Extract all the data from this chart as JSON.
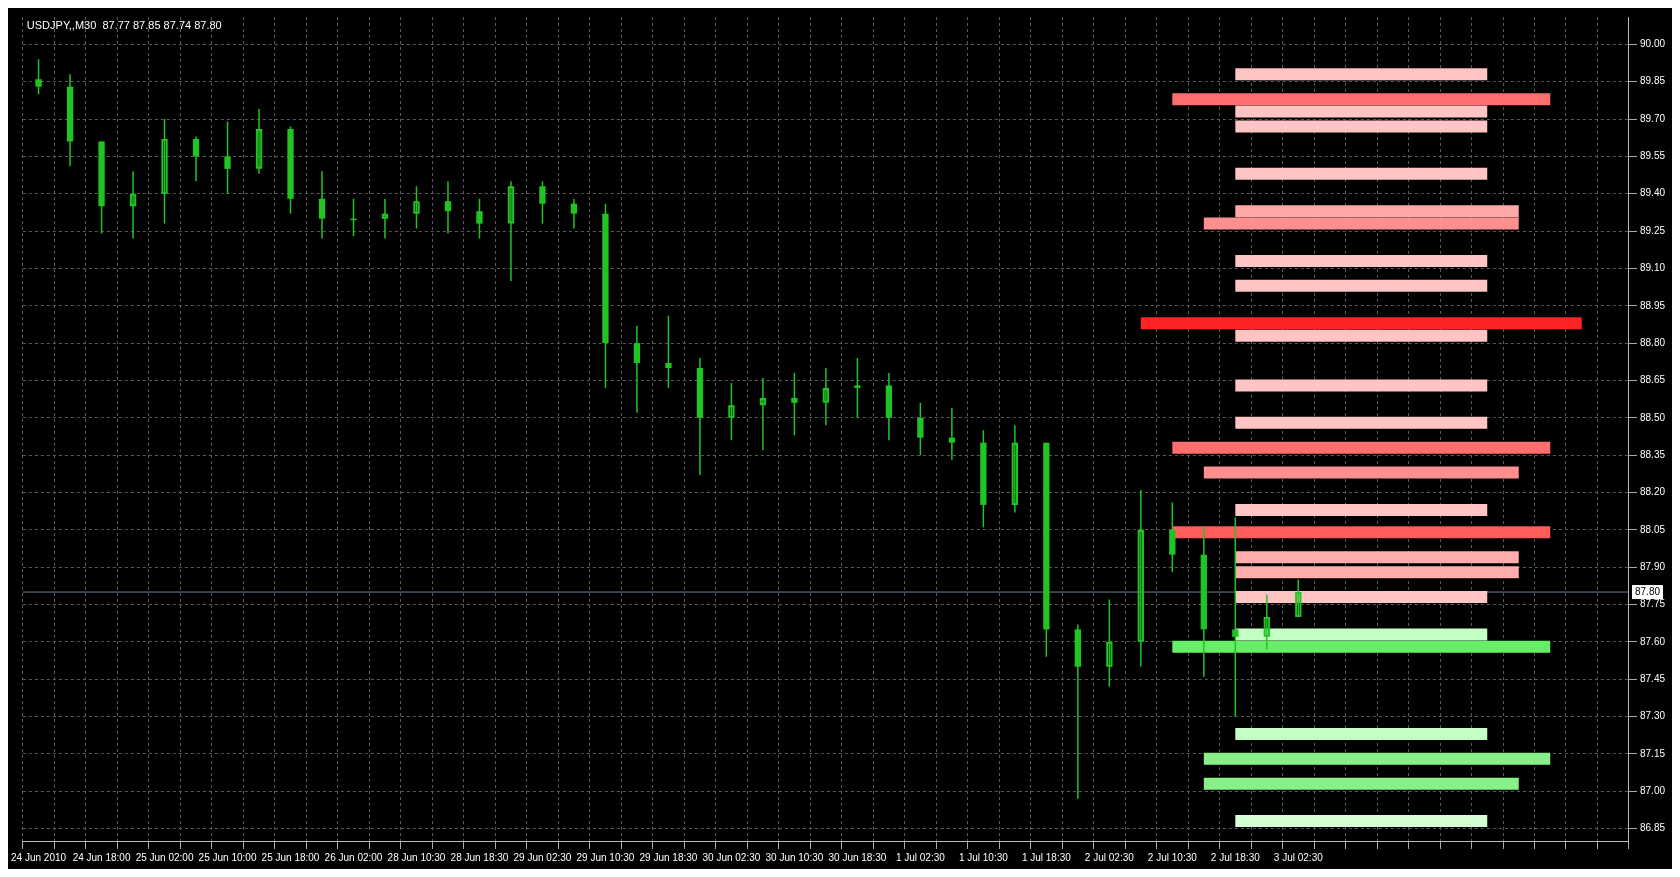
{
  "chart_data": {
    "type": "candlestick",
    "title": "USDJPY,,M30  87.77 87.85 87.74 87.80",
    "color": "#22c422",
    "grid": true,
    "legend": false,
    "categories": [
      "24 Jun 2010",
      null,
      "24 Jun 18:00",
      null,
      "25 Jun 02:00",
      null,
      "25 Jun 10:00",
      null,
      "25 Jun 18:00",
      null,
      "26 Jun 02:00",
      null,
      "28 Jun 10:30",
      null,
      "28 Jun 18:30",
      null,
      "29 Jun 02:30",
      null,
      "29 Jun 10:30",
      null,
      "29 Jun 18:30",
      null,
      "30 Jun 02:30",
      null,
      "30 Jun 10:30",
      null,
      "30 Jun 18:30",
      null,
      "1 Jul 02:30",
      null,
      "1 Jul 10:30",
      null,
      "1 Jul 18:30",
      null,
      "2 Jul 02:30",
      null,
      "2 Jul 10:30",
      null,
      "2 Jul 18:30",
      null,
      "3 Jul 02:30",
      null,
      null,
      null,
      null,
      null,
      null,
      null,
      null,
      null,
      null
    ],
    "ohlc": [
      [
        89.86,
        89.94,
        89.8,
        89.83
      ],
      [
        89.83,
        89.88,
        89.51,
        89.61
      ],
      [
        89.61,
        89.61,
        89.24,
        89.35
      ],
      [
        89.35,
        89.49,
        89.22,
        89.4
      ],
      [
        89.4,
        89.7,
        89.28,
        89.62
      ],
      [
        89.62,
        89.63,
        89.45,
        89.55
      ],
      [
        89.55,
        89.69,
        89.4,
        89.5
      ],
      [
        89.5,
        89.74,
        89.48,
        89.66
      ],
      [
        89.66,
        89.67,
        89.32,
        89.38
      ],
      [
        89.38,
        89.49,
        89.22,
        89.3
      ],
      [
        89.3,
        89.38,
        89.23,
        89.3
      ],
      [
        89.3,
        89.38,
        89.22,
        89.32
      ],
      [
        89.32,
        89.43,
        89.26,
        89.37
      ],
      [
        89.37,
        89.45,
        89.24,
        89.33
      ],
      [
        89.33,
        89.38,
        89.22,
        89.28
      ],
      [
        89.28,
        89.45,
        89.05,
        89.43
      ],
      [
        89.43,
        89.45,
        89.28,
        89.36
      ],
      [
        89.36,
        89.38,
        89.26,
        89.32
      ],
      [
        89.32,
        89.36,
        88.62,
        88.8
      ],
      [
        88.8,
        88.87,
        88.52,
        88.72
      ],
      [
        88.72,
        88.91,
        88.62,
        88.7
      ],
      [
        88.7,
        88.74,
        88.27,
        88.5
      ],
      [
        88.5,
        88.64,
        88.41,
        88.55
      ],
      [
        88.55,
        88.66,
        88.37,
        88.58
      ],
      [
        88.58,
        88.68,
        88.43,
        88.56
      ],
      [
        88.56,
        88.7,
        88.47,
        88.62
      ],
      [
        88.62,
        88.74,
        88.5,
        88.63
      ],
      [
        88.63,
        88.68,
        88.41,
        88.5
      ],
      [
        88.5,
        88.56,
        88.35,
        88.42
      ],
      [
        88.42,
        88.54,
        88.33,
        88.4
      ],
      [
        88.4,
        88.45,
        88.06,
        88.15
      ],
      [
        88.15,
        88.47,
        88.12,
        88.4
      ],
      [
        88.4,
        88.4,
        87.54,
        87.65
      ],
      [
        87.65,
        87.67,
        86.97,
        87.5
      ],
      [
        87.5,
        87.77,
        87.42,
        87.6
      ],
      [
        87.6,
        88.21,
        87.5,
        88.05
      ],
      [
        88.05,
        88.16,
        87.88,
        87.95
      ],
      [
        87.95,
        88.06,
        87.46,
        87.65
      ],
      [
        87.65,
        88.1,
        87.3,
        87.62
      ],
      [
        87.62,
        87.79,
        87.57,
        87.7
      ],
      [
        87.7,
        87.85,
        87.7,
        87.8
      ],
      null,
      null,
      null,
      null,
      null,
      null,
      null,
      null,
      null,
      null
    ],
    "series": [
      {
        "type": "line",
        "color": "#ffc4c4",
        "values": [
          null,
          null,
          null,
          null,
          null,
          null,
          null,
          null,
          null,
          null,
          null,
          null,
          null,
          null,
          null,
          null,
          null,
          null,
          null,
          null,
          null,
          null,
          null,
          null,
          null,
          null,
          null,
          null,
          null,
          null,
          null,
          null,
          null,
          null,
          null,
          null,
          null,
          null,
          89.88,
          89.88,
          89.88,
          89.88,
          89.88,
          89.88,
          89.88,
          89.88,
          89.88,
          null,
          null,
          null,
          null
        ]
      },
      {
        "type": "line",
        "color": "#ff6e6e",
        "values": [
          null,
          null,
          null,
          null,
          null,
          null,
          null,
          null,
          null,
          null,
          null,
          null,
          null,
          null,
          null,
          null,
          null,
          null,
          null,
          null,
          null,
          null,
          null,
          null,
          null,
          null,
          null,
          null,
          null,
          null,
          null,
          null,
          null,
          null,
          null,
          null,
          89.78,
          89.78,
          89.78,
          89.78,
          89.78,
          89.78,
          89.78,
          89.78,
          89.78,
          89.78,
          89.78,
          89.78,
          89.78,
          null,
          null
        ]
      },
      {
        "type": "line",
        "color": "#ffc4c4",
        "values": [
          null,
          null,
          null,
          null,
          null,
          null,
          null,
          null,
          null,
          null,
          null,
          null,
          null,
          null,
          null,
          null,
          null,
          null,
          null,
          null,
          null,
          null,
          null,
          null,
          null,
          null,
          null,
          null,
          null,
          null,
          null,
          null,
          null,
          null,
          null,
          null,
          null,
          null,
          89.73,
          89.73,
          89.73,
          89.73,
          89.73,
          89.73,
          89.73,
          89.73,
          89.73,
          null,
          null,
          null,
          null
        ]
      },
      {
        "type": "line",
        "color": "#ffc4c4",
        "values": [
          null,
          null,
          null,
          null,
          null,
          null,
          null,
          null,
          null,
          null,
          null,
          null,
          null,
          null,
          null,
          null,
          null,
          null,
          null,
          null,
          null,
          null,
          null,
          null,
          null,
          null,
          null,
          null,
          null,
          null,
          null,
          null,
          null,
          null,
          null,
          null,
          null,
          null,
          89.67,
          89.67,
          89.67,
          89.67,
          89.67,
          89.67,
          89.67,
          89.67,
          89.67,
          null,
          null,
          null,
          null
        ]
      },
      {
        "type": "line",
        "color": "#ffc4c4",
        "values": [
          null,
          null,
          null,
          null,
          null,
          null,
          null,
          null,
          null,
          null,
          null,
          null,
          null,
          null,
          null,
          null,
          null,
          null,
          null,
          null,
          null,
          null,
          null,
          null,
          null,
          null,
          null,
          null,
          null,
          null,
          null,
          null,
          null,
          null,
          null,
          null,
          null,
          null,
          89.48,
          89.48,
          89.48,
          89.48,
          89.48,
          89.48,
          89.48,
          89.48,
          89.48,
          null,
          null,
          null,
          null
        ]
      },
      {
        "type": "line",
        "color": "#ffa8a8",
        "values": [
          null,
          null,
          null,
          null,
          null,
          null,
          null,
          null,
          null,
          null,
          null,
          null,
          null,
          null,
          null,
          null,
          null,
          null,
          null,
          null,
          null,
          null,
          null,
          null,
          null,
          null,
          null,
          null,
          null,
          null,
          null,
          null,
          null,
          null,
          null,
          null,
          null,
          null,
          89.33,
          89.33,
          89.33,
          89.33,
          89.33,
          89.33,
          89.33,
          89.33,
          89.33,
          89.33,
          null,
          null,
          null
        ]
      },
      {
        "type": "line",
        "color": "#ff8e8e",
        "values": [
          null,
          null,
          null,
          null,
          null,
          null,
          null,
          null,
          null,
          null,
          null,
          null,
          null,
          null,
          null,
          null,
          null,
          null,
          null,
          null,
          null,
          null,
          null,
          null,
          null,
          null,
          null,
          null,
          null,
          null,
          null,
          null,
          null,
          null,
          null,
          null,
          null,
          89.28,
          89.28,
          89.28,
          89.28,
          89.28,
          89.28,
          89.28,
          89.28,
          89.28,
          89.28,
          89.28,
          null,
          null,
          null
        ]
      },
      {
        "type": "line",
        "color": "#ffc4c4",
        "values": [
          null,
          null,
          null,
          null,
          null,
          null,
          null,
          null,
          null,
          null,
          null,
          null,
          null,
          null,
          null,
          null,
          null,
          null,
          null,
          null,
          null,
          null,
          null,
          null,
          null,
          null,
          null,
          null,
          null,
          null,
          null,
          null,
          null,
          null,
          null,
          null,
          null,
          null,
          89.13,
          89.13,
          89.13,
          89.13,
          89.13,
          89.13,
          89.13,
          89.13,
          89.13,
          null,
          null,
          null,
          null
        ]
      },
      {
        "type": "line",
        "color": "#ffc4c4",
        "values": [
          null,
          null,
          null,
          null,
          null,
          null,
          null,
          null,
          null,
          null,
          null,
          null,
          null,
          null,
          null,
          null,
          null,
          null,
          null,
          null,
          null,
          null,
          null,
          null,
          null,
          null,
          null,
          null,
          null,
          null,
          null,
          null,
          null,
          null,
          null,
          null,
          null,
          null,
          89.03,
          89.03,
          89.03,
          89.03,
          89.03,
          89.03,
          89.03,
          89.03,
          89.03,
          null,
          null,
          null,
          null
        ]
      },
      {
        "type": "line",
        "color": "#ffc4c4",
        "values": [
          null,
          null,
          null,
          null,
          null,
          null,
          null,
          null,
          null,
          null,
          null,
          null,
          null,
          null,
          null,
          null,
          null,
          null,
          null,
          null,
          null,
          null,
          null,
          null,
          null,
          null,
          null,
          null,
          null,
          null,
          null,
          null,
          null,
          null,
          null,
          null,
          null,
          null,
          88.83,
          88.83,
          88.83,
          88.83,
          88.83,
          88.83,
          88.83,
          88.83,
          88.83,
          null,
          null,
          null,
          null
        ]
      },
      {
        "type": "line",
        "color": "#ff2424",
        "values": [
          null,
          null,
          null,
          null,
          null,
          null,
          null,
          null,
          null,
          null,
          null,
          null,
          null,
          null,
          null,
          null,
          null,
          null,
          null,
          null,
          null,
          null,
          null,
          null,
          null,
          null,
          null,
          null,
          null,
          null,
          null,
          null,
          null,
          null,
          null,
          88.88,
          88.88,
          88.88,
          88.88,
          88.88,
          88.88,
          88.88,
          88.88,
          88.88,
          88.88,
          88.88,
          88.88,
          88.88,
          88.88,
          88.88,
          null
        ]
      },
      {
        "type": "line",
        "color": "#ffc4c4",
        "values": [
          null,
          null,
          null,
          null,
          null,
          null,
          null,
          null,
          null,
          null,
          null,
          null,
          null,
          null,
          null,
          null,
          null,
          null,
          null,
          null,
          null,
          null,
          null,
          null,
          null,
          null,
          null,
          null,
          null,
          null,
          null,
          null,
          null,
          null,
          null,
          null,
          null,
          null,
          88.63,
          88.63,
          88.63,
          88.63,
          88.63,
          88.63,
          88.63,
          88.63,
          88.63,
          null,
          null,
          null,
          null
        ]
      },
      {
        "type": "line",
        "color": "#ffc4c4",
        "values": [
          null,
          null,
          null,
          null,
          null,
          null,
          null,
          null,
          null,
          null,
          null,
          null,
          null,
          null,
          null,
          null,
          null,
          null,
          null,
          null,
          null,
          null,
          null,
          null,
          null,
          null,
          null,
          null,
          null,
          null,
          null,
          null,
          null,
          null,
          null,
          null,
          null,
          null,
          88.48,
          88.48,
          88.48,
          88.48,
          88.48,
          88.48,
          88.48,
          88.48,
          88.48,
          null,
          null,
          null,
          null
        ]
      },
      {
        "type": "line",
        "color": "#ff6e6e",
        "values": [
          null,
          null,
          null,
          null,
          null,
          null,
          null,
          null,
          null,
          null,
          null,
          null,
          null,
          null,
          null,
          null,
          null,
          null,
          null,
          null,
          null,
          null,
          null,
          null,
          null,
          null,
          null,
          null,
          null,
          null,
          null,
          null,
          null,
          null,
          null,
          null,
          88.38,
          88.38,
          88.38,
          88.38,
          88.38,
          88.38,
          88.38,
          88.38,
          88.38,
          88.38,
          88.38,
          88.38,
          88.38,
          null,
          null
        ]
      },
      {
        "type": "line",
        "color": "#ff8e8e",
        "values": [
          null,
          null,
          null,
          null,
          null,
          null,
          null,
          null,
          null,
          null,
          null,
          null,
          null,
          null,
          null,
          null,
          null,
          null,
          null,
          null,
          null,
          null,
          null,
          null,
          null,
          null,
          null,
          null,
          null,
          null,
          null,
          null,
          null,
          null,
          null,
          null,
          null,
          88.28,
          88.28,
          88.28,
          88.28,
          88.28,
          88.28,
          88.28,
          88.28,
          88.28,
          88.28,
          88.28,
          null,
          null,
          null
        ]
      },
      {
        "type": "line",
        "color": "#ffc4c4",
        "values": [
          null,
          null,
          null,
          null,
          null,
          null,
          null,
          null,
          null,
          null,
          null,
          null,
          null,
          null,
          null,
          null,
          null,
          null,
          null,
          null,
          null,
          null,
          null,
          null,
          null,
          null,
          null,
          null,
          null,
          null,
          null,
          null,
          null,
          null,
          null,
          null,
          null,
          null,
          88.13,
          88.13,
          88.13,
          88.13,
          88.13,
          88.13,
          88.13,
          88.13,
          88.13,
          null,
          null,
          null,
          null
        ]
      },
      {
        "type": "line",
        "color": "#ff5c5c",
        "values": [
          null,
          null,
          null,
          null,
          null,
          null,
          null,
          null,
          null,
          null,
          null,
          null,
          null,
          null,
          null,
          null,
          null,
          null,
          null,
          null,
          null,
          null,
          null,
          null,
          null,
          null,
          null,
          null,
          null,
          null,
          null,
          null,
          null,
          null,
          null,
          null,
          88.04,
          88.04,
          88.04,
          88.04,
          88.04,
          88.04,
          88.04,
          88.04,
          88.04,
          88.04,
          88.04,
          88.04,
          88.04,
          null,
          null
        ]
      },
      {
        "type": "line",
        "color": "#ffacac",
        "values": [
          null,
          null,
          null,
          null,
          null,
          null,
          null,
          null,
          null,
          null,
          null,
          null,
          null,
          null,
          null,
          null,
          null,
          null,
          null,
          null,
          null,
          null,
          null,
          null,
          null,
          null,
          null,
          null,
          null,
          null,
          null,
          null,
          null,
          null,
          null,
          null,
          null,
          null,
          87.94,
          87.94,
          87.94,
          87.94,
          87.94,
          87.94,
          87.94,
          87.94,
          87.94,
          87.94,
          null,
          null,
          null
        ]
      },
      {
        "type": "line",
        "color": "#ffacac",
        "values": [
          null,
          null,
          null,
          null,
          null,
          null,
          null,
          null,
          null,
          null,
          null,
          null,
          null,
          null,
          null,
          null,
          null,
          null,
          null,
          null,
          null,
          null,
          null,
          null,
          null,
          null,
          null,
          null,
          null,
          null,
          null,
          null,
          null,
          null,
          null,
          null,
          null,
          null,
          87.88,
          87.88,
          87.88,
          87.88,
          87.88,
          87.88,
          87.88,
          87.88,
          87.88,
          87.88,
          null,
          null,
          null
        ]
      },
      {
        "type": "line",
        "color": "#ffc4c4",
        "values": [
          null,
          null,
          null,
          null,
          null,
          null,
          null,
          null,
          null,
          null,
          null,
          null,
          null,
          null,
          null,
          null,
          null,
          null,
          null,
          null,
          null,
          null,
          null,
          null,
          null,
          null,
          null,
          null,
          null,
          null,
          null,
          null,
          null,
          null,
          null,
          null,
          null,
          null,
          87.78,
          87.78,
          87.78,
          87.78,
          87.78,
          87.78,
          87.78,
          87.78,
          87.78,
          null,
          null,
          null,
          null
        ]
      },
      {
        "type": "line",
        "color": "#c4ffc4",
        "values": [
          null,
          null,
          null,
          null,
          null,
          null,
          null,
          null,
          null,
          null,
          null,
          null,
          null,
          null,
          null,
          null,
          null,
          null,
          null,
          null,
          null,
          null,
          null,
          null,
          null,
          null,
          null,
          null,
          null,
          null,
          null,
          null,
          null,
          null,
          null,
          null,
          null,
          null,
          87.63,
          87.63,
          87.63,
          87.63,
          87.63,
          87.63,
          87.63,
          87.63,
          87.63,
          null,
          null,
          null,
          null
        ]
      },
      {
        "type": "line",
        "color": "#66ee66",
        "values": [
          null,
          null,
          null,
          null,
          null,
          null,
          null,
          null,
          null,
          null,
          null,
          null,
          null,
          null,
          null,
          null,
          null,
          null,
          null,
          null,
          null,
          null,
          null,
          null,
          null,
          null,
          null,
          null,
          null,
          null,
          null,
          null,
          null,
          null,
          null,
          null,
          87.58,
          87.58,
          87.58,
          87.58,
          87.58,
          87.58,
          87.58,
          87.58,
          87.58,
          87.58,
          87.58,
          87.58,
          87.58,
          null,
          null
        ]
      },
      {
        "type": "line",
        "color": "#c4ffc4",
        "values": [
          null,
          null,
          null,
          null,
          null,
          null,
          null,
          null,
          null,
          null,
          null,
          null,
          null,
          null,
          null,
          null,
          null,
          null,
          null,
          null,
          null,
          null,
          null,
          null,
          null,
          null,
          null,
          null,
          null,
          null,
          null,
          null,
          null,
          null,
          null,
          null,
          null,
          null,
          87.23,
          87.23,
          87.23,
          87.23,
          87.23,
          87.23,
          87.23,
          87.23,
          87.23,
          null,
          null,
          null,
          null
        ]
      },
      {
        "type": "line",
        "color": "#88f088",
        "values": [
          null,
          null,
          null,
          null,
          null,
          null,
          null,
          null,
          null,
          null,
          null,
          null,
          null,
          null,
          null,
          null,
          null,
          null,
          null,
          null,
          null,
          null,
          null,
          null,
          null,
          null,
          null,
          null,
          null,
          null,
          null,
          null,
          null,
          null,
          null,
          null,
          null,
          87.13,
          87.13,
          87.13,
          87.13,
          87.13,
          87.13,
          87.13,
          87.13,
          87.13,
          87.13,
          87.13,
          87.13,
          null,
          null
        ]
      },
      {
        "type": "line",
        "color": "#88f088",
        "values": [
          null,
          null,
          null,
          null,
          null,
          null,
          null,
          null,
          null,
          null,
          null,
          null,
          null,
          null,
          null,
          null,
          null,
          null,
          null,
          null,
          null,
          null,
          null,
          null,
          null,
          null,
          null,
          null,
          null,
          null,
          null,
          null,
          null,
          null,
          null,
          null,
          null,
          87.03,
          87.03,
          87.03,
          87.03,
          87.03,
          87.03,
          87.03,
          87.03,
          87.03,
          87.03,
          87.03,
          null,
          null,
          null
        ]
      },
      {
        "type": "line",
        "color": "#d4ffd4",
        "values": [
          null,
          null,
          null,
          null,
          null,
          null,
          null,
          null,
          null,
          null,
          null,
          null,
          null,
          null,
          null,
          null,
          null,
          null,
          null,
          null,
          null,
          null,
          null,
          null,
          null,
          null,
          null,
          null,
          null,
          null,
          null,
          null,
          null,
          null,
          null,
          null,
          null,
          null,
          86.88,
          86.88,
          86.88,
          86.88,
          86.88,
          86.88,
          86.88,
          86.88,
          86.88,
          null,
          null,
          null,
          null
        ]
      }
    ],
    "ylim": [
      86.8,
      90.11
    ],
    "yticks": [
      {
        "value": 90,
        "label": "90.00"
      },
      89.85,
      {
        "value": 89.7,
        "label": "89.70"
      },
      89.55,
      {
        "value": 89.4,
        "label": "89.40"
      },
      89.25,
      {
        "value": 89.1,
        "label": "89.10"
      },
      88.95,
      {
        "value": 88.8,
        "label": "88.80"
      },
      88.65,
      {
        "value": 88.5,
        "label": "88.50"
      },
      88.35,
      {
        "value": 88.2,
        "label": "88.20"
      },
      88.05,
      {
        "value": 87.9,
        "label": "87.90"
      },
      87.75,
      {
        "value": 87.6,
        "label": "87.60"
      },
      87.45,
      {
        "value": 87.3,
        "label": "87.30"
      },
      87.15,
      {
        "value": 87,
        "label": "87.00"
      },
      86.85
    ],
    "ref_lines": [
      {
        "axis": "y",
        "value": 87.8,
        "label": "87.80",
        "color": "#6b7f9a"
      }
    ]
  }
}
